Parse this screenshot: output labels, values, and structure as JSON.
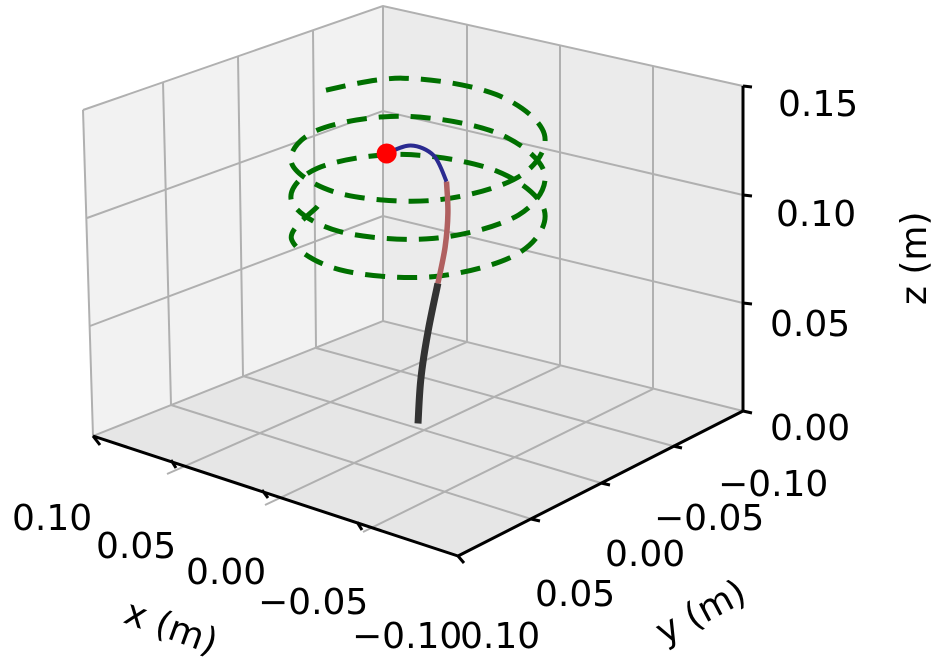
{
  "chart_data": {
    "type": "3d-line",
    "xlabel": "x (m)",
    "ylabel": "y (m)",
    "zlabel": "z (m)",
    "xlim": [
      -0.1,
      0.1
    ],
    "ylim": [
      -0.1,
      0.1
    ],
    "zlim": [
      0.0,
      0.15
    ],
    "x_ticks": [
      "0.10",
      "0.05",
      "0.00",
      "−0.05",
      "−0.10"
    ],
    "y_ticks": [
      "−0.10",
      "−0.05",
      "0.00",
      "0.05",
      "0.10"
    ],
    "z_ticks": [
      "0.00",
      "0.05",
      "0.10",
      "0.15"
    ],
    "grid": true,
    "colors": {
      "reference_helix": "#007000",
      "segment_base": "#333333",
      "segment_middle": "#b06060",
      "segment_tip": "#2a2a90",
      "tip_marker": "#ff0000",
      "pane": "#f2f2f2",
      "grid": "#b0b0b0"
    },
    "series": [
      {
        "style": "dashed",
        "points": [
          [
            0.055,
            0.0,
            0.085
          ],
          [
            0.0389,
            0.0389,
            0.0872
          ],
          [
            0.0,
            0.055,
            0.0894
          ],
          [
            -0.0389,
            0.0389,
            0.0916
          ],
          [
            -0.055,
            0.0,
            0.0938
          ],
          [
            -0.0389,
            -0.0389,
            0.096
          ],
          [
            0.0,
            -0.055,
            0.0982
          ],
          [
            0.0389,
            -0.0389,
            0.1004
          ],
          [
            0.055,
            0.0,
            0.1026
          ],
          [
            0.0389,
            0.0389,
            0.1048
          ],
          [
            0.0,
            0.055,
            0.107
          ],
          [
            -0.0389,
            0.0389,
            0.1092
          ],
          [
            -0.055,
            0.0,
            0.1114
          ],
          [
            -0.0389,
            -0.0389,
            0.1136
          ],
          [
            0.0,
            -0.055,
            0.1158
          ],
          [
            0.0389,
            -0.0389,
            0.118
          ],
          [
            0.055,
            0.0,
            0.1202
          ],
          [
            0.0389,
            0.0389,
            0.1224
          ],
          [
            0.0,
            0.055,
            0.1246
          ],
          [
            -0.0389,
            0.0389,
            0.1268
          ],
          [
            -0.055,
            0.0,
            0.129
          ],
          [
            -0.0389,
            -0.0389,
            0.1312
          ],
          [
            0.0,
            -0.055,
            0.1334
          ],
          [
            0.0389,
            -0.0389,
            0.1356
          ],
          [
            0.055,
            0.0,
            0.1378
          ]
        ]
      },
      {
        "style": "solid-thick",
        "points": [
          [
            0.0,
            0.0,
            0.0
          ],
          [
            0.0,
            -0.002,
            0.02
          ],
          [
            0.0,
            -0.007,
            0.04
          ],
          [
            0.0,
            -0.014,
            0.06
          ]
        ]
      },
      {
        "style": "solid-medium",
        "points": [
          [
            0.0,
            -0.014,
            0.06
          ],
          [
            0.0,
            -0.019,
            0.075
          ],
          [
            0.0,
            -0.021,
            0.09
          ],
          [
            0.0,
            -0.02,
            0.105
          ]
        ]
      },
      {
        "style": "solid-thin",
        "points": [
          [
            0.0,
            -0.02,
            0.105
          ],
          [
            0.0,
            -0.011,
            0.12
          ],
          [
            0.0,
            0.005,
            0.13
          ],
          [
            0.0,
            0.022,
            0.132
          ]
        ]
      }
    ],
    "tip_marker": [
      0.0,
      0.022,
      0.132
    ]
  }
}
